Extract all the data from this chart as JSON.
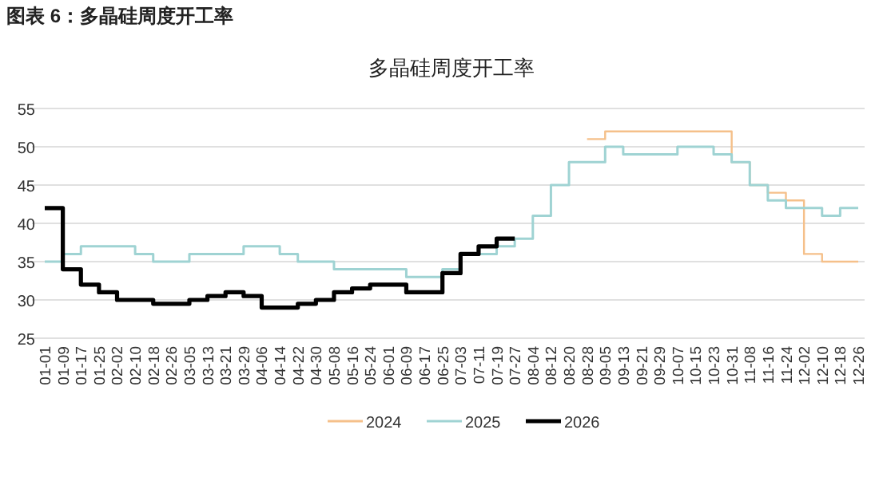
{
  "chart_data": {
    "type": "step",
    "title": "多晶硅周度开工率",
    "annotations": [
      "图表 6：多晶硅周度开工率"
    ],
    "categories": [
      "01-01",
      "01-09",
      "01-17",
      "01-25",
      "02-02",
      "02-10",
      "02-18",
      "02-26",
      "03-05",
      "03-13",
      "03-21",
      "03-29",
      "04-06",
      "04-14",
      "04-22",
      "04-30",
      "05-08",
      "05-16",
      "05-24",
      "06-01",
      "06-09",
      "06-17",
      "06-25",
      "07-03",
      "07-11",
      "07-19",
      "07-27",
      "08-04",
      "08-12",
      "08-20",
      "08-28",
      "09-05",
      "09-13",
      "09-21",
      "09-29",
      "10-07",
      "10-15",
      "10-23",
      "10-31",
      "11-08",
      "11-16",
      "11-24",
      "12-02",
      "12-10",
      "12-18",
      "12-26"
    ],
    "series": [
      {
        "name": "2024",
        "color": "#f5c08a",
        "values": [
          null,
          null,
          null,
          null,
          null,
          null,
          null,
          null,
          null,
          null,
          null,
          null,
          null,
          null,
          null,
          null,
          null,
          null,
          null,
          null,
          null,
          null,
          null,
          null,
          null,
          null,
          null,
          null,
          null,
          null,
          51,
          52,
          52,
          52,
          52,
          52,
          52,
          52,
          48,
          45,
          44,
          43,
          36,
          35,
          35,
          35
        ]
      },
      {
        "name": "2025",
        "color": "#9fd3d3",
        "values": [
          35,
          36,
          37,
          37,
          37,
          36,
          35,
          35,
          36,
          36,
          36,
          37,
          37,
          36,
          35,
          35,
          34,
          34,
          34,
          34,
          33,
          33,
          34,
          36,
          36,
          37,
          38,
          41,
          45,
          48,
          48,
          50,
          49,
          49,
          49,
          50,
          50,
          49,
          48,
          45,
          43,
          42,
          42,
          41,
          42,
          42
        ]
      },
      {
        "name": "2026",
        "color": "#000000",
        "values": [
          42,
          34,
          32,
          31,
          30,
          30,
          29.5,
          29.5,
          30,
          30.5,
          31,
          30.5,
          29,
          29,
          29.5,
          30,
          31,
          31.5,
          32,
          32,
          31,
          31,
          33.5,
          36,
          37,
          38,
          38,
          null,
          null,
          null,
          null,
          null,
          null,
          null,
          null,
          null,
          null,
          null,
          null,
          null,
          null,
          null,
          null,
          null,
          null,
          null
        ]
      }
    ],
    "ylim": [
      25,
      55
    ],
    "yticks": [
      25,
      30,
      35,
      40,
      45,
      50,
      55
    ],
    "grid": "y",
    "legend": "bottom"
  }
}
